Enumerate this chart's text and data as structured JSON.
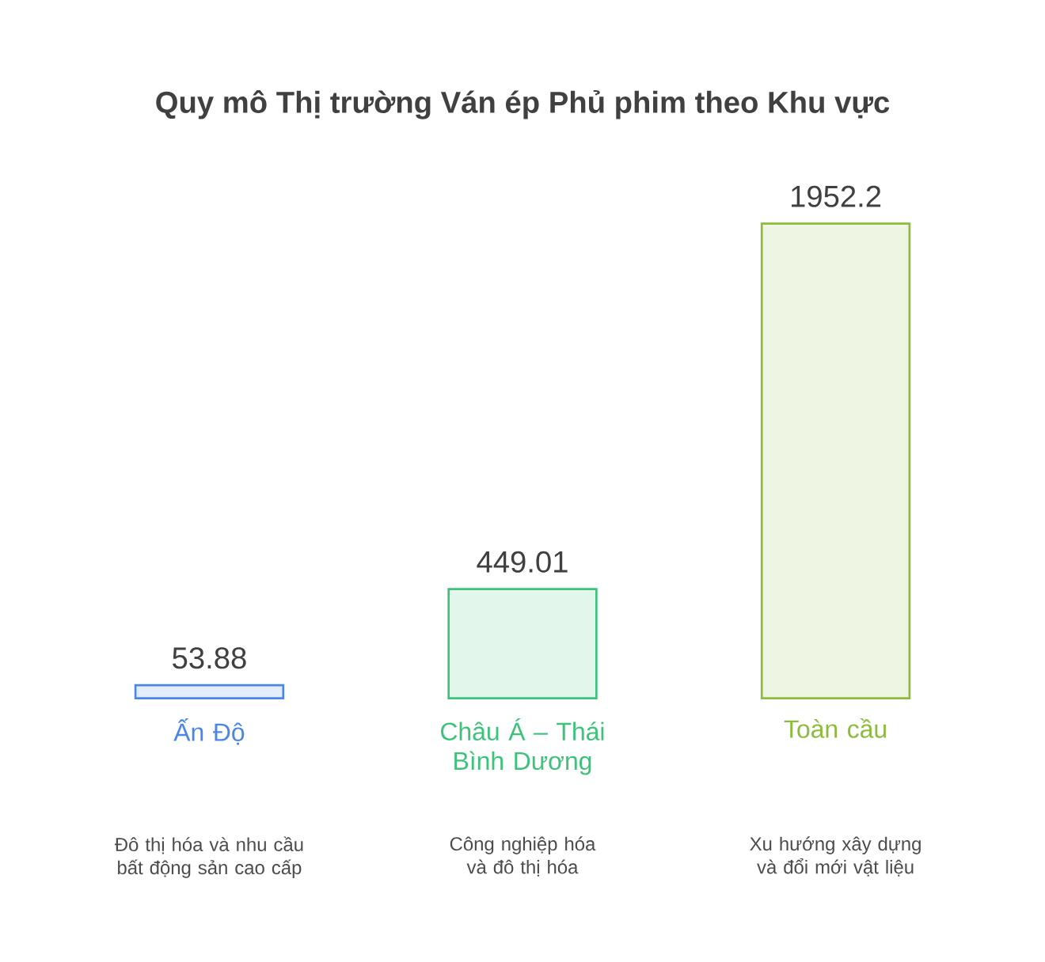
{
  "chart_data": {
    "type": "bar",
    "title": "Quy mô Thị trường Ván ép Phủ phim theo Khu vực",
    "categories": [
      "Ấn Độ",
      "Châu Á – Thái Bình Dương",
      "Toàn cầu"
    ],
    "values": [
      53.88,
      449.01,
      1952.2
    ],
    "colors": [
      "#4a86e8",
      "#3cc37a",
      "#8dbb3c"
    ],
    "data_labels": true,
    "annotations": [
      "Đô thị hóa và nhu cầu bất động sản cao cấp",
      "Công nghiệp hóa và đô thị hóa",
      "Xu hướng xây dựng và đổi mới vật liệu"
    ]
  }
}
